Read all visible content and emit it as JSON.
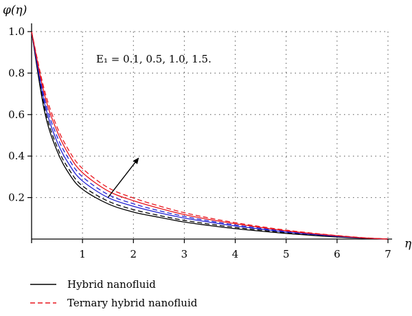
{
  "chart_data": {
    "type": "line",
    "ylabel": "φ(η)",
    "xlabel": "η",
    "annotation": "E₁ = 0.1, 0.5, 1.0, 1.5.",
    "xlim": [
      0,
      7
    ],
    "ylim": [
      0,
      1.0
    ],
    "xticks": [
      "1",
      "2",
      "3",
      "4",
      "5",
      "6",
      "7"
    ],
    "yticks": [
      "0.2",
      "0.4",
      "0.6",
      "0.8",
      "1.0"
    ],
    "grid": true,
    "legend_position": "bottom-left",
    "legend": [
      {
        "label": "Hybrid nanofluid",
        "style": "solid",
        "color": "#000000"
      },
      {
        "label": "Ternary hybrid nanofluid",
        "style": "dashed",
        "color": "#e8141c"
      }
    ],
    "x": [
      0,
      0.25,
      0.5,
      0.75,
      1,
      1.5,
      2,
      2.5,
      3,
      3.5,
      4,
      4.5,
      5,
      5.5,
      6,
      6.5,
      7
    ],
    "series": [
      {
        "color": "#000000",
        "style": "solid",
        "values": [
          1.0,
          0.62,
          0.425,
          0.31,
          0.24,
          0.17,
          0.13,
          0.105,
          0.082,
          0.065,
          0.05,
          0.038,
          0.027,
          0.018,
          0.01,
          0.004,
          0.0
        ]
      },
      {
        "color": "#000000",
        "style": "dashed",
        "values": [
          1.0,
          0.64,
          0.445,
          0.33,
          0.256,
          0.183,
          0.142,
          0.114,
          0.09,
          0.072,
          0.056,
          0.043,
          0.031,
          0.021,
          0.012,
          0.005,
          0.0
        ]
      },
      {
        "color": "#1f1fd1",
        "style": "solid",
        "values": [
          1.0,
          0.66,
          0.47,
          0.355,
          0.28,
          0.2,
          0.158,
          0.127,
          0.101,
          0.081,
          0.063,
          0.048,
          0.034,
          0.023,
          0.013,
          0.005,
          0.0
        ]
      },
      {
        "color": "#1f1fd1",
        "style": "dashed",
        "values": [
          1.0,
          0.68,
          0.495,
          0.378,
          0.3,
          0.215,
          0.17,
          0.137,
          0.109,
          0.087,
          0.068,
          0.052,
          0.037,
          0.025,
          0.014,
          0.006,
          0.0
        ]
      },
      {
        "color": "#e8141c",
        "style": "solid",
        "values": [
          1.0,
          0.7,
          0.52,
          0.4,
          0.32,
          0.232,
          0.185,
          0.149,
          0.118,
          0.094,
          0.074,
          0.056,
          0.04,
          0.027,
          0.016,
          0.006,
          0.0
        ]
      },
      {
        "color": "#e8141c",
        "style": "dashed",
        "values": [
          1.0,
          0.72,
          0.54,
          0.42,
          0.34,
          0.248,
          0.198,
          0.16,
          0.127,
          0.101,
          0.079,
          0.06,
          0.043,
          0.029,
          0.017,
          0.007,
          0.0
        ]
      }
    ],
    "arrow": {
      "from": [
        1.5,
        0.2
      ],
      "to": [
        2.1,
        0.39
      ]
    }
  }
}
